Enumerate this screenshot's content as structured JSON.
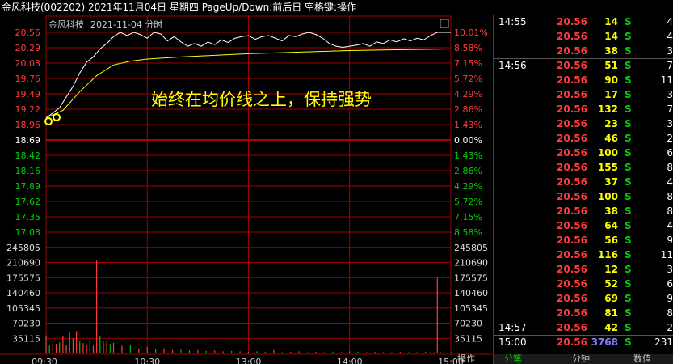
{
  "header": {
    "title": "金风科技(002202) 2021年11月04日 星期四 PageUp/Down:前后日 空格键:操作",
    "chart_label": "金风科技",
    "chart_date": "2021-11-04 分时"
  },
  "caption": "始终在均价线之上，保持强势",
  "colors": {
    "up": "#ff3c3c",
    "down": "#00d000",
    "grid": "#a00000",
    "price_line": "#ffffff",
    "avg_line": "#ffff00",
    "vol_buy": "#ff3c3c",
    "vol_sell": "#00c000"
  },
  "chart_data": {
    "type": "line",
    "title": "金风科技 2021-11-04 分时",
    "prev_close": 18.69,
    "price_ticks": [
      "20.56",
      "20.29",
      "20.03",
      "19.76",
      "19.49",
      "19.22",
      "18.96",
      "18.69",
      "18.42",
      "18.16",
      "17.89",
      "17.62",
      "17.35",
      "17.08"
    ],
    "pct_ticks": [
      "10.01%",
      "8.58%",
      "7.15%",
      "5.72%",
      "4.29%",
      "2.86%",
      "1.43%",
      "0.00%",
      "1.43%",
      "2.86%",
      "4.29%",
      "5.72%",
      "7.15%",
      "8.58%"
    ],
    "volume_ticks": [
      "245805",
      "210690",
      "175575",
      "140460",
      "105345",
      "70230",
      "35115"
    ],
    "time_ticks": [
      "09:30",
      "10:30",
      "13:00",
      "14:00",
      "15:00"
    ],
    "ylim": [
      16.82,
      20.56
    ],
    "volume_max": 280920,
    "price_series": [
      [
        0,
        18.96
      ],
      [
        4,
        19.05
      ],
      [
        8,
        19.15
      ],
      [
        12,
        19.35
      ],
      [
        16,
        19.55
      ],
      [
        20,
        19.8
      ],
      [
        24,
        20.0
      ],
      [
        28,
        20.1
      ],
      [
        32,
        20.25
      ],
      [
        36,
        20.35
      ],
      [
        40,
        20.48
      ],
      [
        44,
        20.56
      ],
      [
        48,
        20.5
      ],
      [
        52,
        20.56
      ],
      [
        56,
        20.52
      ],
      [
        60,
        20.45
      ],
      [
        64,
        20.56
      ],
      [
        68,
        20.53
      ],
      [
        72,
        20.4
      ],
      [
        76,
        20.48
      ],
      [
        80,
        20.38
      ],
      [
        84,
        20.3
      ],
      [
        88,
        20.35
      ],
      [
        92,
        20.3
      ],
      [
        96,
        20.38
      ],
      [
        100,
        20.33
      ],
      [
        104,
        20.42
      ],
      [
        108,
        20.37
      ],
      [
        112,
        20.45
      ],
      [
        116,
        20.48
      ],
      [
        120,
        20.5
      ],
      [
        124,
        20.43
      ],
      [
        128,
        20.48
      ],
      [
        132,
        20.5
      ],
      [
        136,
        20.45
      ],
      [
        140,
        20.4
      ],
      [
        144,
        20.5
      ],
      [
        148,
        20.48
      ],
      [
        152,
        20.53
      ],
      [
        156,
        20.56
      ],
      [
        160,
        20.52
      ],
      [
        164,
        20.45
      ],
      [
        168,
        20.35
      ],
      [
        172,
        20.3
      ],
      [
        176,
        20.28
      ],
      [
        180,
        20.3
      ],
      [
        184,
        20.32
      ],
      [
        188,
        20.35
      ],
      [
        192,
        20.3
      ],
      [
        196,
        20.38
      ],
      [
        200,
        20.35
      ],
      [
        204,
        20.42
      ],
      [
        208,
        20.38
      ],
      [
        212,
        20.44
      ],
      [
        216,
        20.4
      ],
      [
        220,
        20.45
      ],
      [
        224,
        20.42
      ],
      [
        228,
        20.5
      ],
      [
        232,
        20.56
      ],
      [
        236,
        20.56
      ],
      [
        240,
        20.56
      ]
    ],
    "avg_series": [
      [
        0,
        18.96
      ],
      [
        10,
        19.1
      ],
      [
        20,
        19.45
      ],
      [
        30,
        19.75
      ],
      [
        40,
        19.95
      ],
      [
        50,
        20.02
      ],
      [
        60,
        20.06
      ],
      [
        80,
        20.1
      ],
      [
        100,
        20.13
      ],
      [
        120,
        20.16
      ],
      [
        140,
        20.18
      ],
      [
        160,
        20.2
      ],
      [
        180,
        20.22
      ],
      [
        200,
        20.23
      ],
      [
        220,
        20.24
      ],
      [
        240,
        20.25
      ]
    ],
    "volume_series": [
      [
        0,
        42000
      ],
      [
        2,
        18000
      ],
      [
        4,
        30000
      ],
      [
        6,
        22000
      ],
      [
        8,
        26000
      ],
      [
        10,
        40000
      ],
      [
        12,
        20000
      ],
      [
        14,
        48000
      ],
      [
        16,
        35000
      ],
      [
        18,
        52000
      ],
      [
        20,
        30000
      ],
      [
        22,
        24000
      ],
      [
        24,
        20000
      ],
      [
        26,
        32000
      ],
      [
        28,
        18000
      ],
      [
        30,
        215000
      ],
      [
        32,
        40000
      ],
      [
        34,
        28000
      ],
      [
        36,
        30000
      ],
      [
        38,
        22000
      ],
      [
        40,
        25000
      ],
      [
        45,
        18000
      ],
      [
        50,
        20000
      ],
      [
        55,
        12000
      ],
      [
        60,
        15000
      ],
      [
        65,
        10000
      ],
      [
        70,
        12000
      ],
      [
        75,
        8000
      ],
      [
        80,
        9000
      ],
      [
        85,
        7000
      ],
      [
        90,
        8000
      ],
      [
        95,
        6000
      ],
      [
        100,
        7000
      ],
      [
        105,
        5000
      ],
      [
        110,
        6000
      ],
      [
        115,
        5000
      ],
      [
        120,
        4000
      ],
      [
        125,
        5000
      ],
      [
        130,
        4000
      ],
      [
        135,
        8000
      ],
      [
        140,
        3000
      ],
      [
        145,
        4000
      ],
      [
        150,
        5000
      ],
      [
        155,
        3000
      ],
      [
        160,
        4000
      ],
      [
        165,
        3000
      ],
      [
        170,
        4000
      ],
      [
        175,
        3000
      ],
      [
        180,
        5000
      ],
      [
        185,
        4000
      ],
      [
        190,
        3000
      ],
      [
        195,
        4000
      ],
      [
        200,
        3000
      ],
      [
        205,
        3000
      ],
      [
        210,
        4000
      ],
      [
        215,
        3000
      ],
      [
        220,
        3000
      ],
      [
        225,
        4000
      ],
      [
        228,
        3000
      ],
      [
        230,
        3000
      ],
      [
        232,
        175000
      ],
      [
        234,
        3000
      ],
      [
        236,
        3000
      ],
      [
        238,
        2000
      ],
      [
        240,
        3000
      ]
    ]
  },
  "ticks": [
    {
      "time": "14:55",
      "price": "20.56",
      "vol": "14",
      "side": "S",
      "cnt": "4"
    },
    {
      "time": "",
      "price": "20.56",
      "vol": "14",
      "side": "S",
      "cnt": "4"
    },
    {
      "time": "",
      "price": "20.56",
      "vol": "38",
      "side": "S",
      "cnt": "3"
    },
    {
      "time": "14:56",
      "price": "20.56",
      "vol": "51",
      "side": "S",
      "cnt": "7"
    },
    {
      "time": "",
      "price": "20.56",
      "vol": "90",
      "side": "S",
      "cnt": "11"
    },
    {
      "time": "",
      "price": "20.56",
      "vol": "17",
      "side": "S",
      "cnt": "3"
    },
    {
      "time": "",
      "price": "20.56",
      "vol": "132",
      "side": "S",
      "cnt": "7"
    },
    {
      "time": "",
      "price": "20.56",
      "vol": "23",
      "side": "S",
      "cnt": "3"
    },
    {
      "time": "",
      "price": "20.56",
      "vol": "46",
      "side": "S",
      "cnt": "2"
    },
    {
      "time": "",
      "price": "20.56",
      "vol": "100",
      "side": "S",
      "cnt": "6"
    },
    {
      "time": "",
      "price": "20.56",
      "vol": "155",
      "side": "S",
      "cnt": "8"
    },
    {
      "time": "",
      "price": "20.56",
      "vol": "37",
      "side": "S",
      "cnt": "4"
    },
    {
      "time": "",
      "price": "20.56",
      "vol": "100",
      "side": "S",
      "cnt": "8"
    },
    {
      "time": "",
      "price": "20.56",
      "vol": "38",
      "side": "S",
      "cnt": "8"
    },
    {
      "time": "",
      "price": "20.56",
      "vol": "64",
      "side": "S",
      "cnt": "4"
    },
    {
      "time": "",
      "price": "20.56",
      "vol": "56",
      "side": "S",
      "cnt": "9"
    },
    {
      "time": "",
      "price": "20.56",
      "vol": "116",
      "side": "S",
      "cnt": "11"
    },
    {
      "time": "",
      "price": "20.56",
      "vol": "12",
      "side": "S",
      "cnt": "3"
    },
    {
      "time": "",
      "price": "20.56",
      "vol": "52",
      "side": "S",
      "cnt": "6"
    },
    {
      "time": "",
      "price": "20.56",
      "vol": "69",
      "side": "S",
      "cnt": "9"
    },
    {
      "time": "",
      "price": "20.56",
      "vol": "81",
      "side": "S",
      "cnt": "8"
    },
    {
      "time": "14:57",
      "price": "20.56",
      "vol": "42",
      "side": "S",
      "cnt": "2"
    },
    {
      "time": "15:00",
      "price": "20.56",
      "vol": "3768",
      "side": "S",
      "cnt": "231"
    }
  ],
  "tabs": [
    "分笔",
    "分钟",
    "数值"
  ],
  "ops_label": "操作"
}
